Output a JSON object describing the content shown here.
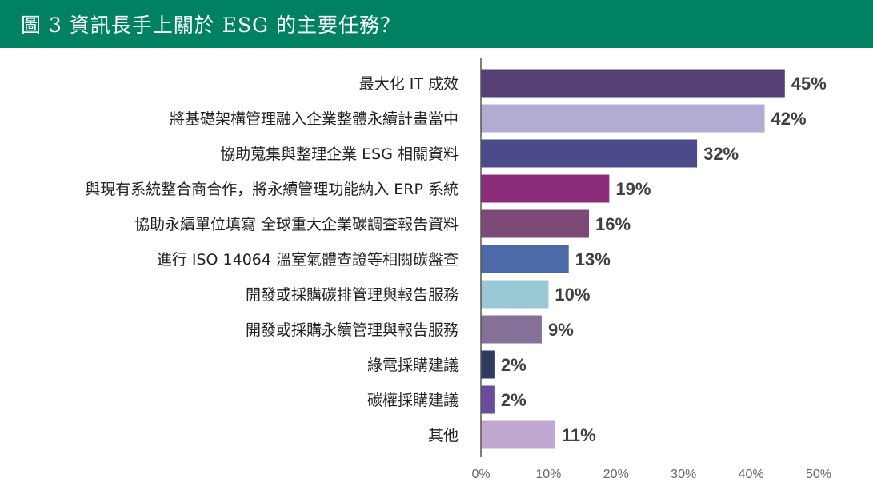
{
  "chart_data": {
    "type": "bar",
    "orientation": "horizontal",
    "title": "圖 3 資訊長手上關於 ESG 的主要任務？",
    "categories": [
      "最大化 IT 成效",
      "將基礎架構管理融入企業整體永續計畫當中",
      "協助蒐集與整理企業 ESG 相關資料",
      "與現有系統整合商合作，將永續管理功能納入 ERP 系統",
      "協助永續單位填寫 全球重大企業碳調查報告資料",
      "進行 ISO 14064 溫室氣體查證等相關碳盤查",
      "開發或採購碳排管理與報告服務",
      "開發或採購永續管理與報告服務",
      "綠電採購建議",
      "碳權採購建議",
      "其他"
    ],
    "values": [
      45,
      42,
      32,
      19,
      16,
      13,
      10,
      9,
      2,
      2,
      11
    ],
    "value_labels": [
      "45%",
      "42%",
      "32%",
      "19%",
      "16%",
      "13%",
      "10%",
      "9%",
      "2%",
      "2%",
      "11%"
    ],
    "colors": [
      "#553f75",
      "#b2acd4",
      "#4b4a8a",
      "#8c2d7c",
      "#7d4a77",
      "#4d6aa8",
      "#9ac8d5",
      "#857197",
      "#2e3a5e",
      "#6a4c9c",
      "#c0a8d0"
    ],
    "xlim": [
      0,
      50
    ],
    "xticks": [
      "0%",
      "10%",
      "20%",
      "30%",
      "40%",
      "50%"
    ],
    "xlabel": "",
    "ylabel": "",
    "grid": false
  },
  "header_color": "#008262"
}
